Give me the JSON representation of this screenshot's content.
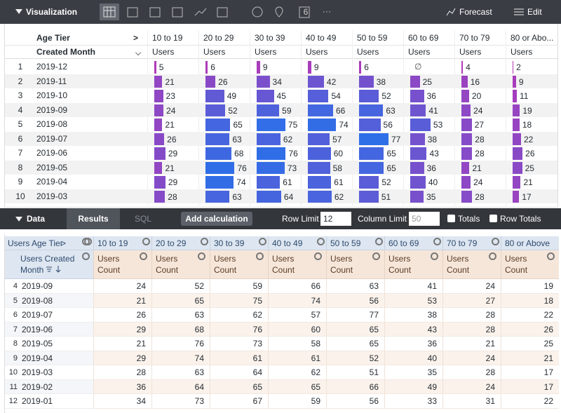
{
  "toolbar": {
    "title": "Visualization",
    "icon_badge": "6",
    "more": "···",
    "forecast": "Forecast",
    "edit": "Edit"
  },
  "visualization": {
    "pivot_label": "Age Tier",
    "pivot_arrow": ">",
    "dimension_label": "Created Month",
    "columns": [
      "10 to 19",
      "20 to 29",
      "30 to 39",
      "40 to 49",
      "50 to 59",
      "60 to 69",
      "70 to 79",
      "80 or Abo..."
    ],
    "measure": "Users",
    "null_label": "∅",
    "bar_colors": [
      "#b836b5",
      "#2e6fe8"
    ],
    "rows": [
      {
        "index": 1,
        "month": "2019-12",
        "values": [
          5,
          6,
          9,
          9,
          6,
          null,
          4,
          2
        ]
      },
      {
        "index": 2,
        "month": "2019-11",
        "values": [
          21,
          26,
          34,
          42,
          38,
          25,
          16,
          9
        ]
      },
      {
        "index": 3,
        "month": "2019-10",
        "values": [
          23,
          49,
          45,
          54,
          52,
          36,
          20,
          11
        ]
      },
      {
        "index": 4,
        "month": "2019-09",
        "values": [
          24,
          52,
          59,
          66,
          63,
          41,
          24,
          19
        ]
      },
      {
        "index": 5,
        "month": "2019-08",
        "values": [
          21,
          65,
          75,
          74,
          56,
          53,
          27,
          18
        ]
      },
      {
        "index": 6,
        "month": "2019-07",
        "values": [
          26,
          63,
          62,
          57,
          77,
          38,
          28,
          22
        ]
      },
      {
        "index": 7,
        "month": "2019-06",
        "values": [
          29,
          68,
          76,
          60,
          65,
          43,
          28,
          26
        ]
      },
      {
        "index": 8,
        "month": "2019-05",
        "values": [
          21,
          76,
          73,
          58,
          65,
          36,
          21,
          25
        ]
      },
      {
        "index": 9,
        "month": "2019-04",
        "values": [
          29,
          74,
          61,
          61,
          52,
          40,
          24,
          21
        ]
      },
      {
        "index": 10,
        "month": "2019-03",
        "values": [
          28,
          63,
          64,
          62,
          51,
          35,
          28,
          17
        ]
      }
    ]
  },
  "data_bar": {
    "title": "Data",
    "tabs": [
      "Results",
      "SQL"
    ],
    "add_calculation": "Add calculation",
    "row_limit_label": "Row Limit",
    "row_limit": 12,
    "column_limit_label": "Column Limit",
    "column_limit": 50,
    "totals": "Totals",
    "row_totals": "Row Totals"
  },
  "data_table": {
    "pivot_label": "Users Age Tier",
    "pivot_arrow": ">",
    "dimension_label": "Users Created Month",
    "measure": "Users Count",
    "columns": [
      "10 to 19",
      "20 to 29",
      "30 to 39",
      "40 to 49",
      "50 to 59",
      "60 to 69",
      "70 to 79",
      "80 or Above"
    ],
    "rows": [
      {
        "index": 4,
        "month": "2019-09",
        "values": [
          24,
          52,
          59,
          66,
          63,
          41,
          24,
          19
        ]
      },
      {
        "index": 5,
        "month": "2019-08",
        "values": [
          21,
          65,
          75,
          74,
          56,
          53,
          27,
          18
        ]
      },
      {
        "index": 6,
        "month": "2019-07",
        "values": [
          26,
          63,
          62,
          57,
          77,
          38,
          28,
          22
        ]
      },
      {
        "index": 7,
        "month": "2019-06",
        "values": [
          29,
          68,
          76,
          60,
          65,
          43,
          28,
          26
        ]
      },
      {
        "index": 8,
        "month": "2019-05",
        "values": [
          21,
          76,
          73,
          58,
          65,
          36,
          21,
          25
        ]
      },
      {
        "index": 9,
        "month": "2019-04",
        "values": [
          29,
          74,
          61,
          61,
          52,
          40,
          24,
          21
        ]
      },
      {
        "index": 10,
        "month": "2019-03",
        "values": [
          28,
          63,
          64,
          62,
          51,
          35,
          28,
          17
        ]
      },
      {
        "index": 11,
        "month": "2019-02",
        "values": [
          36,
          64,
          65,
          65,
          66,
          49,
          24,
          17
        ]
      },
      {
        "index": 12,
        "month": "2019-01",
        "values": [
          34,
          73,
          67,
          59,
          56,
          33,
          31,
          22
        ]
      }
    ]
  }
}
